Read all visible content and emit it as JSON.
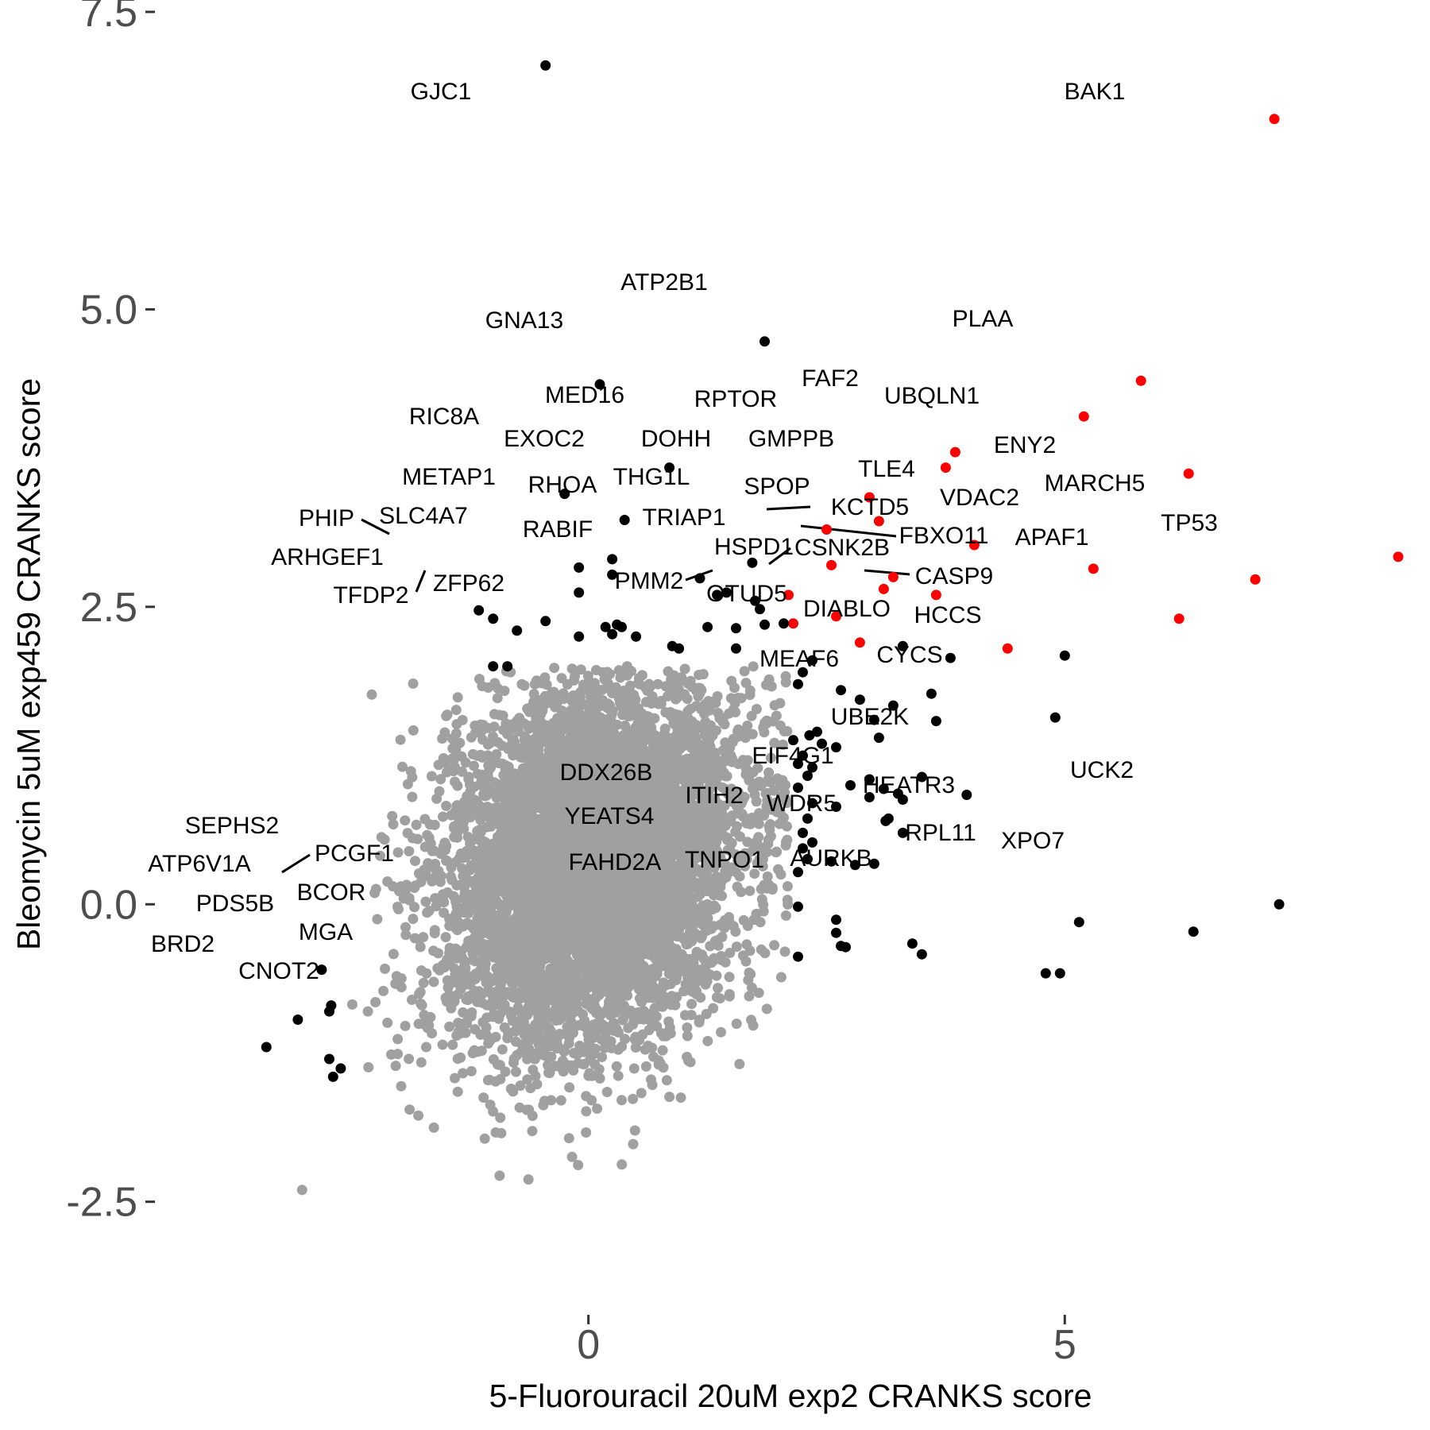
{
  "chart_data": {
    "type": "scatter",
    "xlabel": "5-Fluorouracil 20uM exp2 CRANKS score",
    "ylabel": "Bleomycin 5uM exp459 CRANKS score",
    "xlim": [
      -4.55,
      8.75
    ],
    "ylim": [
      -3.35,
      7.6
    ],
    "x_ticks": [
      {
        "value": 0,
        "label": "0"
      },
      {
        "value": 5,
        "label": "5"
      }
    ],
    "y_ticks": [
      {
        "value": -2.5,
        "label": "-2.5"
      },
      {
        "value": 0,
        "label": "0.0"
      },
      {
        "value": 2.5,
        "label": "2.5"
      },
      {
        "value": 5,
        "label": "5.0"
      },
      {
        "value": 7.5,
        "label": "7.5"
      }
    ],
    "grid": false,
    "legend": "none",
    "colors": {
      "background_genes": "#a0a0a0",
      "highlighted_genes": "#000000",
      "apoptosis_genes": "#ff0000",
      "tick_text": "#4d4d4d",
      "axis_title": "#000000"
    },
    "background_cloud": {
      "description": "dense cloud of several thousand non-significant genes",
      "x_center": 0.05,
      "y_center": 0.35,
      "x_sd": 0.78,
      "y_sd": 0.78,
      "correlation": 0.2
    },
    "series": [
      {
        "color": "#ff0000",
        "points": [
          {
            "label": "BAK1",
            "x": 7.2,
            "y": 6.6
          },
          {
            "label": "PLAA",
            "x": 5.8,
            "y": 4.4
          },
          {
            "label": "UBQLN1",
            "x": 5.2,
            "y": 4.1
          },
          {
            "label": "FAF2",
            "x": 3.85,
            "y": 3.8
          },
          {
            "label": "RPTOR",
            "x": 3.75,
            "y": 3.67
          },
          {
            "label": "ENY2",
            "x": 6.3,
            "y": 3.62
          },
          {
            "label": "DOHH",
            "x": 2.95,
            "y": 3.42
          },
          {
            "label": "GMPPB",
            "x": 3.05,
            "y": 3.22
          },
          {
            "label": "THG1L",
            "x": 2.5,
            "y": 3.15
          },
          {
            "label": "TLE4",
            "x": 4.05,
            "y": 3.02
          },
          {
            "label": "TP53",
            "x": 8.5,
            "y": 2.92
          },
          {
            "label": "SPOP",
            "x": 2.55,
            "y": 2.85
          },
          {
            "label": "VDAC2",
            "x": 5.3,
            "y": 2.82
          },
          {
            "label": "MARCH5",
            "x": 7.0,
            "y": 2.73
          },
          {
            "label": "KCTD5",
            "x": 3.2,
            "y": 2.75
          },
          {
            "label": "TRIAP1",
            "x": 3.1,
            "y": 2.65
          },
          {
            "label": "FBXO11",
            "x": 3.65,
            "y": 2.6
          },
          {
            "label": "",
            "x": 2.1,
            "y": 2.6
          },
          {
            "label": "APAF1",
            "x": 6.2,
            "y": 2.4
          },
          {
            "label": "HSPD1",
            "x": 2.6,
            "y": 2.42
          },
          {
            "label": "",
            "x": 2.15,
            "y": 2.36
          },
          {
            "label": "PMM2",
            "x": 2.85,
            "y": 2.2
          },
          {
            "label": "CASP9",
            "x": 4.4,
            "y": 2.15
          }
        ]
      },
      {
        "color": "#000000",
        "points": [
          {
            "label": "GJC1",
            "x": -0.45,
            "y": 7.05
          },
          {
            "label": "ATP2B1",
            "x": 1.85,
            "y": 4.73
          },
          {
            "label": "GNA13",
            "x": 0.12,
            "y": 4.37
          },
          {
            "label": "MED16",
            "x": 0.85,
            "y": 3.67
          },
          {
            "label": "RIC8A",
            "x": -0.25,
            "y": 3.45
          },
          {
            "label": "EXOC2",
            "x": 0.38,
            "y": 3.23
          },
          {
            "label": "METAP1",
            "x": -0.1,
            "y": 2.83
          },
          {
            "label": "RHOA",
            "x": 0.25,
            "y": 2.9
          },
          {
            "label": "",
            "x": 1.72,
            "y": 2.87
          },
          {
            "label": "",
            "x": 0.25,
            "y": 2.77
          },
          {
            "label": "",
            "x": 1.17,
            "y": 2.74
          },
          {
            "label": "SLC4A7",
            "x": -1.15,
            "y": 2.47
          },
          {
            "label": "PHIP",
            "x": -1.0,
            "y": 2.4
          },
          {
            "label": "ARHGEF1",
            "x": -0.75,
            "y": 2.3
          },
          {
            "label": "",
            "x": -0.45,
            "y": 2.38
          },
          {
            "label": "",
            "x": -0.1,
            "y": 2.62
          },
          {
            "label": "RABIF",
            "x": 1.35,
            "y": 2.6
          },
          {
            "label": "",
            "x": 1.45,
            "y": 2.62
          },
          {
            "label": "",
            "x": 1.75,
            "y": 2.55
          },
          {
            "label": "",
            "x": 1.8,
            "y": 2.48
          },
          {
            "label": "",
            "x": 1.85,
            "y": 2.35
          },
          {
            "label": "",
            "x": 1.55,
            "y": 2.32
          },
          {
            "label": "",
            "x": 1.25,
            "y": 2.33
          },
          {
            "label": "",
            "x": 0.35,
            "y": 2.33
          },
          {
            "label": "",
            "x": 0.3,
            "y": 2.35
          },
          {
            "label": "",
            "x": 0.18,
            "y": 2.33
          },
          {
            "label": "",
            "x": 0.25,
            "y": 2.27
          },
          {
            "label": "",
            "x": 0.5,
            "y": 2.25
          },
          {
            "label": "",
            "x": 0.88,
            "y": 2.17
          },
          {
            "label": "",
            "x": 0.95,
            "y": 2.15
          },
          {
            "label": "",
            "x": 1.55,
            "y": 2.15
          },
          {
            "label": "",
            "x": -0.1,
            "y": 2.25
          },
          {
            "label": "",
            "x": 2.05,
            "y": 2.36
          },
          {
            "label": "",
            "x": 2.35,
            "y": 2.05
          },
          {
            "label": "CSNK2B",
            "x": 3.3,
            "y": 2.17
          },
          {
            "label": "OTUD5",
            "x": 3.8,
            "y": 2.07
          },
          {
            "label": "",
            "x": 2.25,
            "y": 1.95
          },
          {
            "label": "",
            "x": 2.65,
            "y": 1.8
          },
          {
            "label": "HCCS",
            "x": 5.0,
            "y": 2.09
          },
          {
            "label": "",
            "x": 2.2,
            "y": 1.85
          },
          {
            "label": "",
            "x": 2.85,
            "y": 1.72
          },
          {
            "label": "",
            "x": 3.2,
            "y": 1.67
          },
          {
            "label": "DIABLO",
            "x": 3.6,
            "y": 1.77
          },
          {
            "label": "",
            "x": 3.0,
            "y": 1.55
          },
          {
            "label": "",
            "x": 3.65,
            "y": 1.54
          },
          {
            "label": "CYCS",
            "x": 4.9,
            "y": 1.57
          },
          {
            "label": "",
            "x": 2.4,
            "y": 1.45
          },
          {
            "label": "",
            "x": 2.32,
            "y": 1.42
          },
          {
            "label": "",
            "x": 2.6,
            "y": 1.32
          },
          {
            "label": "",
            "x": 2.45,
            "y": 1.35
          },
          {
            "label": "",
            "x": 3.05,
            "y": 1.4
          },
          {
            "label": "",
            "x": 2.15,
            "y": 1.38
          },
          {
            "label": "",
            "x": 2.25,
            "y": 1.25
          },
          {
            "label": "",
            "x": 2.2,
            "y": 1.18
          },
          {
            "label": "",
            "x": 2.35,
            "y": 1.15
          },
          {
            "label": "",
            "x": 2.3,
            "y": 1.08
          },
          {
            "label": "MEAF6",
            "x": 3.5,
            "y": 1.07
          },
          {
            "label": "",
            "x": 2.95,
            "y": 1.05
          },
          {
            "label": "",
            "x": 2.2,
            "y": 0.98
          },
          {
            "label": "",
            "x": 2.75,
            "y": 1.0
          },
          {
            "label": "",
            "x": 3.1,
            "y": 0.97
          },
          {
            "label": "",
            "x": 3.25,
            "y": 0.93
          },
          {
            "label": "",
            "x": 2.95,
            "y": 0.9
          },
          {
            "label": "",
            "x": 3.3,
            "y": 0.88
          },
          {
            "label": "UBE2K",
            "x": 3.97,
            "y": 0.92
          },
          {
            "label": "",
            "x": 2.35,
            "y": 0.85
          },
          {
            "label": "",
            "x": 2.6,
            "y": 0.82
          },
          {
            "label": "",
            "x": 3.15,
            "y": 0.72
          },
          {
            "label": "",
            "x": 3.12,
            "y": 0.7
          },
          {
            "label": "",
            "x": 2.3,
            "y": 0.72
          },
          {
            "label": "",
            "x": 2.25,
            "y": 0.6
          },
          {
            "label": "",
            "x": 3.3,
            "y": 0.6
          },
          {
            "label": "",
            "x": 2.35,
            "y": 0.52
          },
          {
            "label": "",
            "x": 2.25,
            "y": 0.47
          },
          {
            "label": "",
            "x": 2.3,
            "y": 0.38
          },
          {
            "label": "",
            "x": 2.55,
            "y": 0.36
          },
          {
            "label": "",
            "x": 2.8,
            "y": 0.33
          },
          {
            "label": "EIF4G1",
            "x": 3.0,
            "y": 0.34
          },
          {
            "label": "",
            "x": 2.2,
            "y": 0.27
          },
          {
            "label": "DDX26B",
            "x": 2.2,
            "y": -0.02
          },
          {
            "label": "ITIH2",
            "x": 2.6,
            "y": -0.13
          },
          {
            "label": "UCK2",
            "x": 7.25,
            "y": 0.0
          },
          {
            "label": "HEATR3",
            "x": 5.15,
            "y": -0.15
          },
          {
            "label": "XPO7",
            "x": 6.35,
            "y": -0.23
          },
          {
            "label": "YEATS4",
            "x": 2.6,
            "y": -0.24
          },
          {
            "label": "",
            "x": 2.65,
            "y": -0.35
          },
          {
            "label": "WDR5",
            "x": 3.4,
            "y": -0.33
          },
          {
            "label": "",
            "x": 3.5,
            "y": -0.42
          },
          {
            "label": "FAHD2A",
            "x": 2.2,
            "y": -0.44
          },
          {
            "label": "TNPO1",
            "x": 2.7,
            "y": -0.36
          },
          {
            "label": "AURKB",
            "x": 4.95,
            "y": -0.58
          },
          {
            "label": "RPL11",
            "x": 4.8,
            "y": -0.58
          },
          {
            "label": "SEPHS2",
            "x": -2.8,
            "y": -0.55
          },
          {
            "label": "PCGF1",
            "x": -2.7,
            "y": -0.85
          },
          {
            "label": "ATP6V1A",
            "x": -2.72,
            "y": -0.9
          },
          {
            "label": "PDS5B",
            "x": -3.05,
            "y": -0.97
          },
          {
            "label": "BRD2",
            "x": -3.38,
            "y": -1.2
          },
          {
            "label": "BCOR",
            "x": -2.72,
            "y": -1.3
          },
          {
            "label": "MGA",
            "x": -2.6,
            "y": -1.38
          },
          {
            "label": "CNOT2",
            "x": -2.68,
            "y": -1.45
          },
          {
            "label": "ZFP62",
            "x": -0.85,
            "y": 2.0
          },
          {
            "label": "TFDP2",
            "x": -1.0,
            "y": 2.0
          }
        ]
      }
    ],
    "labels": [
      {
        "text": "GJC1"
      },
      {
        "text": "BAK1"
      },
      {
        "text": "ATP2B1"
      },
      {
        "text": "GNA13"
      },
      {
        "text": "PLAA"
      },
      {
        "text": "FAF2"
      },
      {
        "text": "RPTOR"
      },
      {
        "text": "UBQLN1"
      },
      {
        "text": "MED16"
      },
      {
        "text": "RIC8A"
      },
      {
        "text": "EXOC2"
      },
      {
        "text": "DOHH"
      },
      {
        "text": "GMPPB"
      },
      {
        "text": "ENY2"
      },
      {
        "text": "METAP1"
      },
      {
        "text": "RHOA"
      },
      {
        "text": "THG1L"
      },
      {
        "text": "SPOP"
      },
      {
        "text": "TLE4"
      },
      {
        "text": "MARCH5"
      },
      {
        "text": "VDAC2"
      },
      {
        "text": "KCTD5"
      },
      {
        "text": "PHIP"
      },
      {
        "text": "SLC4A7"
      },
      {
        "text": "RABIF"
      },
      {
        "text": "TRIAP1"
      },
      {
        "text": "FBXO11"
      },
      {
        "text": "TP53"
      },
      {
        "text": "APAF1"
      },
      {
        "text": "HSPD1"
      },
      {
        "text": "CSNK2B"
      },
      {
        "text": "ARHGEF1"
      },
      {
        "text": "ZFP62"
      },
      {
        "text": "TFDP2"
      },
      {
        "text": "PMM2"
      },
      {
        "text": "CASP9"
      },
      {
        "text": "OTUD5"
      },
      {
        "text": "DIABLO"
      },
      {
        "text": "HCCS"
      },
      {
        "text": "CYCS"
      },
      {
        "text": "MEAF6"
      },
      {
        "text": "UBE2K"
      },
      {
        "text": "EIF4G1"
      },
      {
        "text": "DDX26B"
      },
      {
        "text": "ITIH2"
      },
      {
        "text": "UCK2"
      },
      {
        "text": "HEATR3"
      },
      {
        "text": "WDR5"
      },
      {
        "text": "YEATS4"
      },
      {
        "text": "RPL11"
      },
      {
        "text": "XPO7"
      },
      {
        "text": "FAHD2A"
      },
      {
        "text": "TNPO1"
      },
      {
        "text": "AURKB"
      },
      {
        "text": "SEPHS2"
      },
      {
        "text": "PCGF1"
      },
      {
        "text": "ATP6V1A"
      },
      {
        "text": "PDS5B"
      },
      {
        "text": "BCOR"
      },
      {
        "text": "BRD2"
      },
      {
        "text": "MGA"
      },
      {
        "text": "CNOT2"
      }
    ]
  }
}
